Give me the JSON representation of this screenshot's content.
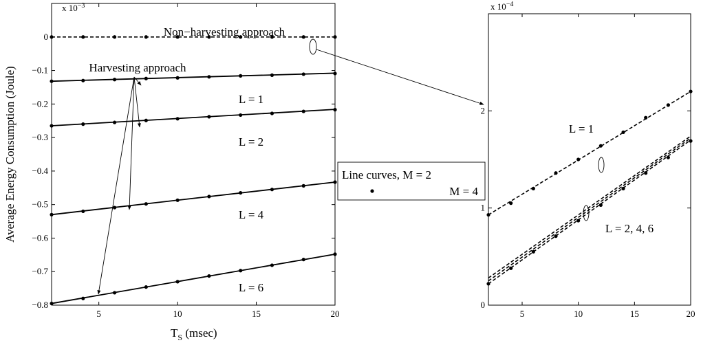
{
  "chart_data": [
    {
      "type": "line",
      "ylabel": "Average Energy Consumption (Joule)",
      "xlabel_parts": [
        "T",
        "S",
        " (msec)"
      ],
      "exponent_parts": [
        "x 10",
        "−3"
      ],
      "xlim": [
        2,
        20
      ],
      "xticks": [
        5,
        10,
        15,
        20
      ],
      "ylim": [
        -0.8,
        0.1
      ],
      "yticks": [
        {
          "value": -0.8,
          "label": "−0.8"
        },
        {
          "value": -0.7,
          "label": "−0.7"
        },
        {
          "value": -0.6,
          "label": "−0.6"
        },
        {
          "value": -0.5,
          "label": "−0.5"
        },
        {
          "value": -0.4,
          "label": "−0.4"
        },
        {
          "value": -0.3,
          "label": "−0.3"
        },
        {
          "value": -0.2,
          "label": "−0.2"
        },
        {
          "value": -0.1,
          "label": "−0.1"
        },
        0
      ],
      "annotations": [
        "Non−harvesting approach",
        "Harvesting approach",
        "L = 1",
        "L = 2",
        "L = 4",
        "L = 6"
      ],
      "series": [
        {
          "style": "dashed",
          "color": "#000000",
          "x": [
            2,
            20
          ],
          "values": [
            0,
            0
          ]
        },
        {
          "style": "dots",
          "color": "#000000",
          "x": [
            2,
            4,
            6,
            8,
            10,
            12,
            14,
            16,
            18,
            20
          ],
          "values": [
            0,
            0,
            0,
            0,
            0,
            0,
            0,
            0,
            0,
            0
          ]
        },
        {
          "style": "solid",
          "color": "#000000",
          "x": [
            2,
            20
          ],
          "values": [
            -0.132,
            -0.108
          ]
        },
        {
          "style": "dots",
          "color": "#000000",
          "x": [
            2,
            4,
            6,
            8,
            10,
            12,
            14,
            16,
            18,
            20
          ],
          "values": [
            -0.132,
            -0.13,
            -0.127,
            -0.124,
            -0.122,
            -0.119,
            -0.116,
            -0.114,
            -0.111,
            -0.109
          ]
        },
        {
          "style": "solid",
          "color": "#000000",
          "x": [
            2,
            20
          ],
          "values": [
            -0.265,
            -0.216
          ]
        },
        {
          "style": "dots",
          "color": "#000000",
          "x": [
            2,
            4,
            6,
            8,
            10,
            12,
            14,
            16,
            18,
            20
          ],
          "values": [
            -0.265,
            -0.26,
            -0.255,
            -0.249,
            -0.244,
            -0.238,
            -0.233,
            -0.228,
            -0.222,
            -0.217
          ]
        },
        {
          "style": "solid",
          "color": "#000000",
          "x": [
            2,
            20
          ],
          "values": [
            -0.53,
            -0.433
          ]
        },
        {
          "style": "dots",
          "color": "#000000",
          "x": [
            2,
            4,
            6,
            8,
            10,
            12,
            14,
            16,
            18,
            20
          ],
          "values": [
            -0.53,
            -0.52,
            -0.509,
            -0.498,
            -0.487,
            -0.476,
            -0.465,
            -0.455,
            -0.444,
            -0.433
          ]
        },
        {
          "style": "solid",
          "color": "#000000",
          "x": [
            2,
            20
          ],
          "values": [
            -0.795,
            -0.648
          ]
        },
        {
          "style": "dots",
          "color": "#000000",
          "x": [
            2,
            4,
            6,
            8,
            10,
            12,
            14,
            16,
            18,
            20
          ],
          "values": [
            -0.795,
            -0.78,
            -0.763,
            -0.746,
            -0.73,
            -0.713,
            -0.697,
            -0.681,
            -0.664,
            -0.648
          ]
        }
      ]
    },
    {
      "type": "line",
      "exponent_parts": [
        "x 10",
        "−4"
      ],
      "xlim": [
        2,
        20
      ],
      "xticks": [
        5,
        10,
        15,
        20
      ],
      "ylim": [
        0,
        3
      ],
      "yticks": [
        0,
        1,
        2
      ],
      "annotations": [
        "L = 1",
        "L = 2, 4, 6"
      ],
      "legend": [
        "Line curves, M = 2",
        "M = 4"
      ],
      "series": [
        {
          "style": "dashed",
          "color": "#000000",
          "x": [
            2,
            20
          ],
          "values": [
            0.93,
            2.2
          ]
        },
        {
          "style": "dots",
          "color": "#000000",
          "x": [
            2,
            4,
            6,
            8,
            10,
            12,
            14,
            16,
            18,
            20
          ],
          "values": [
            0.93,
            1.05,
            1.2,
            1.36,
            1.5,
            1.64,
            1.78,
            1.93,
            2.06,
            2.2
          ]
        },
        {
          "style": "dashed",
          "color": "#000000",
          "x": [
            2,
            20
          ],
          "values": [
            0.22,
            1.7
          ]
        },
        {
          "style": "dashed",
          "color": "#000000",
          "x": [
            2,
            20
          ],
          "values": [
            0.25,
            1.72
          ]
        },
        {
          "style": "dashed",
          "color": "#000000",
          "x": [
            2,
            20
          ],
          "values": [
            0.28,
            1.74
          ]
        },
        {
          "style": "dots",
          "color": "#000000",
          "x": [
            2,
            4,
            6,
            8,
            10,
            12,
            14,
            16,
            18,
            20
          ],
          "values": [
            0.22,
            0.38,
            0.55,
            0.71,
            0.87,
            1.03,
            1.2,
            1.36,
            1.52,
            1.69
          ]
        }
      ]
    }
  ]
}
